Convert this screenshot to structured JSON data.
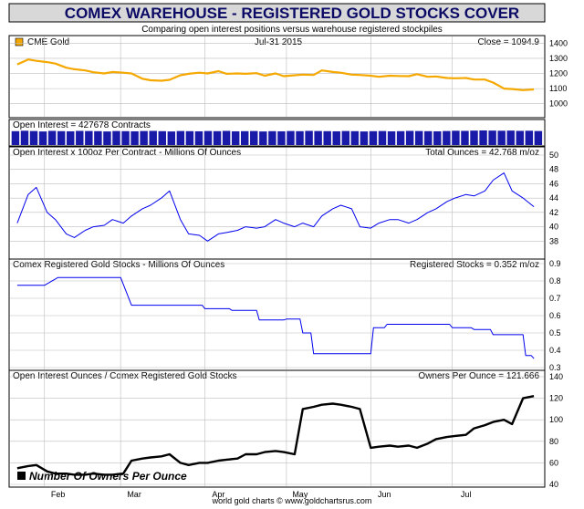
{
  "header": {
    "title": "COMEX WAREHOUSE - REGISTERED GOLD STOCKS COVER",
    "subtitle": "Comparing open interest positions versus warehouse registered stockpiles"
  },
  "footer": {
    "credit": "world gold charts © www.goldchartsrus.com"
  },
  "colors": {
    "title_bg": "#d8d8d8",
    "gold": "#f5a800",
    "blue": "#0000ee",
    "navy": "#1a1aa8",
    "black": "#000000",
    "grid": "#bdbdbd"
  },
  "chart_data": [
    {
      "type": "line",
      "title": "CME Gold",
      "date_label": "Jul-31  2015",
      "readout": "Close = 1094.9",
      "legend_marker_color": "#f5a800",
      "ylim": [
        920,
        1420
      ],
      "yticks": [
        "1000",
        "1100",
        "1200",
        "1300",
        "1400"
      ],
      "x": [
        "2015-01-22",
        "2015-01-26",
        "2015-01-29",
        "2015-02-02",
        "2015-02-05",
        "2015-02-09",
        "2015-02-12",
        "2015-02-16",
        "2015-02-19",
        "2015-02-23",
        "2015-02-26",
        "2015-03-02",
        "2015-03-05",
        "2015-03-09",
        "2015-03-12",
        "2015-03-16",
        "2015-03-19",
        "2015-03-23",
        "2015-03-26",
        "2015-03-30",
        "2015-04-02",
        "2015-04-06",
        "2015-04-09",
        "2015-04-13",
        "2015-04-16",
        "2015-04-20",
        "2015-04-23",
        "2015-04-27",
        "2015-04-30",
        "2015-05-04",
        "2015-05-07",
        "2015-05-11",
        "2015-05-14",
        "2015-05-18",
        "2015-05-21",
        "2015-05-25",
        "2015-05-28",
        "2015-06-01",
        "2015-06-04",
        "2015-06-08",
        "2015-06-11",
        "2015-06-15",
        "2015-06-18",
        "2015-06-22",
        "2015-06-25",
        "2015-06-29",
        "2015-07-02",
        "2015-07-06",
        "2015-07-09",
        "2015-07-13",
        "2015-07-16",
        "2015-07-20",
        "2015-07-23",
        "2015-07-27",
        "2015-07-31"
      ],
      "series": [
        {
          "values": [
            1260,
            1292,
            1283,
            1275,
            1265,
            1238,
            1228,
            1220,
            1208,
            1200,
            1210,
            1205,
            1200,
            1165,
            1155,
            1152,
            1158,
            1188,
            1198,
            1205,
            1200,
            1215,
            1198,
            1200,
            1198,
            1202,
            1185,
            1200,
            1182,
            1188,
            1192,
            1190,
            1220,
            1210,
            1205,
            1192,
            1190,
            1185,
            1178,
            1185,
            1183,
            1182,
            1195,
            1178,
            1180,
            1170,
            1168,
            1170,
            1160,
            1160,
            1140,
            1100,
            1097,
            1090,
            1095
          ]
        }
      ]
    },
    {
      "type": "bar",
      "title": "Open Interest = 427678 Contracts",
      "note": "daily contract counts, bars almost full height with slightly taller bars in late July",
      "ylim": [
        0,
        1
      ],
      "series": [
        {
          "values": [
            0.95,
            0.98,
            0.96,
            0.93,
            0.97,
            0.95,
            0.94,
            0.97,
            0.96,
            0.95,
            0.93,
            0.96,
            0.95,
            0.94,
            0.96,
            0.97,
            0.95,
            0.93,
            0.96,
            0.95,
            0.94,
            0.96,
            0.95,
            0.97,
            0.94,
            0.95,
            0.96,
            0.93,
            0.95,
            0.94,
            0.96,
            0.95,
            0.97,
            0.96,
            0.95,
            0.94,
            0.96,
            0.95,
            0.93,
            0.95,
            0.96,
            0.94,
            0.95,
            0.97,
            0.96,
            0.95,
            0.94,
            0.96,
            0.98,
            0.97,
            0.99,
            1.0,
            0.99,
            0.98,
            0.99,
            0.97,
            0.98,
            0.96
          ]
        }
      ]
    },
    {
      "type": "line",
      "title": "Open Interest x 100oz Per Contract - Millions Of Ounces",
      "readout": "Total Ounces = 42.768 m/oz",
      "ylim": [
        36,
        50
      ],
      "yticks": [
        "38",
        "40",
        "42",
        "44",
        "46",
        "48",
        "50"
      ],
      "x": [
        "2015-01-22",
        "2015-01-26",
        "2015-01-29",
        "2015-02-02",
        "2015-02-05",
        "2015-02-09",
        "2015-02-12",
        "2015-02-16",
        "2015-02-19",
        "2015-02-23",
        "2015-02-26",
        "2015-03-02",
        "2015-03-05",
        "2015-03-09",
        "2015-03-12",
        "2015-03-16",
        "2015-03-19",
        "2015-03-23",
        "2015-03-26",
        "2015-03-30",
        "2015-04-02",
        "2015-04-06",
        "2015-04-09",
        "2015-04-13",
        "2015-04-16",
        "2015-04-20",
        "2015-04-23",
        "2015-04-27",
        "2015-04-30",
        "2015-05-04",
        "2015-05-07",
        "2015-05-11",
        "2015-05-14",
        "2015-05-18",
        "2015-05-21",
        "2015-05-25",
        "2015-05-28",
        "2015-06-01",
        "2015-06-04",
        "2015-06-08",
        "2015-06-11",
        "2015-06-15",
        "2015-06-18",
        "2015-06-22",
        "2015-06-25",
        "2015-06-29",
        "2015-07-02",
        "2015-07-06",
        "2015-07-09",
        "2015-07-13",
        "2015-07-16",
        "2015-07-20",
        "2015-07-23",
        "2015-07-27",
        "2015-07-31"
      ],
      "series": [
        {
          "values": [
            40.5,
            44.5,
            45.5,
            42.0,
            41.0,
            39.0,
            38.5,
            39.5,
            40.0,
            40.2,
            41.0,
            40.5,
            41.5,
            42.5,
            43.0,
            44.0,
            45.0,
            41.0,
            39.0,
            38.8,
            38.0,
            39.0,
            39.2,
            39.5,
            40.0,
            39.8,
            40.0,
            41.0,
            40.5,
            40.0,
            40.5,
            40.0,
            41.5,
            42.5,
            43.0,
            42.5,
            40.0,
            39.8,
            40.5,
            41.0,
            41.0,
            40.5,
            41.0,
            42.0,
            42.5,
            43.5,
            44.0,
            44.5,
            44.3,
            45.0,
            46.5,
            47.5,
            45.0,
            44.0,
            42.8
          ]
        }
      ]
    },
    {
      "type": "line",
      "title": "Comex Registered Gold Stocks - Millions Of Ounces",
      "readout": "Registered Stocks = 0.352 m/oz",
      "ylim": [
        0.3,
        0.9
      ],
      "yticks": [
        "0.3",
        "0.4",
        "0.5",
        "0.6",
        "0.7",
        "0.8",
        "0.9"
      ],
      "x": [
        "2015-01-22",
        "2015-02-01",
        "2015-02-06",
        "2015-03-01",
        "2015-03-05",
        "2015-03-31",
        "2015-04-01",
        "2015-04-10",
        "2015-04-11",
        "2015-04-20",
        "2015-04-21",
        "2015-04-30",
        "2015-05-01",
        "2015-05-06",
        "2015-05-07",
        "2015-05-10",
        "2015-05-11",
        "2015-05-29",
        "2015-06-01",
        "2015-06-02",
        "2015-06-06",
        "2015-06-07",
        "2015-06-30",
        "2015-07-01",
        "2015-07-08",
        "2015-07-09",
        "2015-07-15",
        "2015-07-16",
        "2015-07-27",
        "2015-07-28",
        "2015-07-30",
        "2015-07-31"
      ],
      "series": [
        {
          "values": [
            0.775,
            0.775,
            0.82,
            0.82,
            0.66,
            0.66,
            0.64,
            0.64,
            0.63,
            0.63,
            0.575,
            0.575,
            0.58,
            0.58,
            0.5,
            0.5,
            0.38,
            0.38,
            0.38,
            0.53,
            0.53,
            0.55,
            0.55,
            0.53,
            0.53,
            0.52,
            0.52,
            0.49,
            0.49,
            0.37,
            0.37,
            0.352
          ]
        }
      ]
    },
    {
      "type": "line",
      "title": "Open Interest Ounces / Comex Registered Gold Stocks",
      "readout": "Owners Per Ounce = 121.666",
      "legend": "Number Of Owners Per Ounce",
      "ylim": [
        40,
        140
      ],
      "yticks": [
        "40",
        "60",
        "80",
        "100",
        "120",
        "140"
      ],
      "x": [
        "2015-01-22",
        "2015-01-26",
        "2015-01-29",
        "2015-02-02",
        "2015-02-05",
        "2015-02-09",
        "2015-02-12",
        "2015-02-16",
        "2015-02-19",
        "2015-02-23",
        "2015-02-26",
        "2015-03-02",
        "2015-03-05",
        "2015-03-09",
        "2015-03-12",
        "2015-03-16",
        "2015-03-19",
        "2015-03-23",
        "2015-03-26",
        "2015-03-30",
        "2015-04-02",
        "2015-04-06",
        "2015-04-09",
        "2015-04-13",
        "2015-04-16",
        "2015-04-20",
        "2015-04-23",
        "2015-04-27",
        "2015-04-30",
        "2015-05-04",
        "2015-05-07",
        "2015-05-11",
        "2015-05-14",
        "2015-05-18",
        "2015-05-21",
        "2015-05-25",
        "2015-05-28",
        "2015-06-01",
        "2015-06-04",
        "2015-06-08",
        "2015-06-11",
        "2015-06-15",
        "2015-06-18",
        "2015-06-22",
        "2015-06-25",
        "2015-06-29",
        "2015-07-02",
        "2015-07-06",
        "2015-07-09",
        "2015-07-13",
        "2015-07-16",
        "2015-07-20",
        "2015-07-23",
        "2015-07-27",
        "2015-07-31"
      ],
      "series": [
        {
          "values": [
            55,
            57,
            58,
            52,
            50,
            50,
            49,
            49,
            50,
            49,
            49,
            50,
            62,
            64,
            65,
            66,
            68,
            60,
            58,
            60,
            60,
            62,
            63,
            64,
            68,
            68,
            70,
            71,
            70,
            68,
            110,
            112,
            114,
            115,
            114,
            112,
            110,
            74,
            75,
            76,
            75,
            76,
            74,
            78,
            82,
            84,
            85,
            86,
            92,
            95,
            98,
            100,
            96,
            120,
            122
          ]
        }
      ]
    }
  ],
  "x_axis": {
    "ticks": [
      "Feb",
      "Mar",
      "Apr",
      "May",
      "Jun",
      "Jul"
    ]
  }
}
